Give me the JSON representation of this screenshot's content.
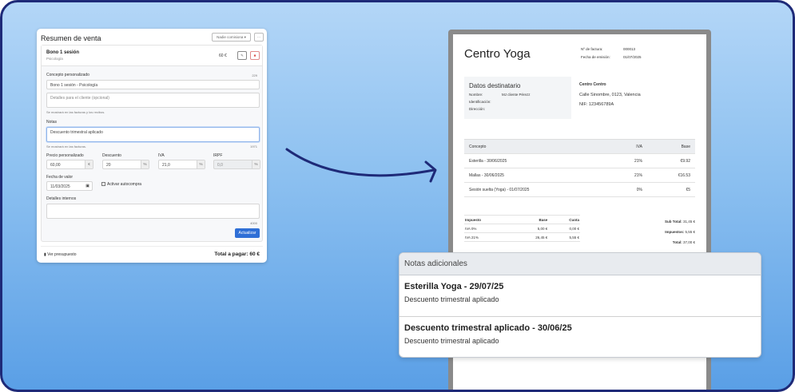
{
  "sale": {
    "title": "Resumen de venta",
    "commission": "Nadie comisiona ▾",
    "more": "···",
    "item": {
      "name": "Bono 1 sesión",
      "category": "Psicología",
      "price": "60 €"
    },
    "concept_label": "Concepto personalizado",
    "concept_count": "229",
    "concept_value": "Bono 1 sesión - Psicología",
    "details_placeholder": "Detalles para el cliente (opcional)",
    "details_hint": "Se mostrará en las facturas y los recibos.",
    "notes_label": "Notas",
    "notes_value": "Descuento trimestral aplicado",
    "notes_hint": "Se mostrará en las facturas.",
    "notes_count": "1971",
    "price_label": "Precio personalizado",
    "price_value": "60,00",
    "price_unit": "€",
    "discount_label": "Descuento",
    "discount_value": "20",
    "discount_unit": "%",
    "iva_label": "IVA",
    "iva_value": "21,0",
    "iva_unit": "%",
    "irpf_label": "IRPF",
    "irpf_value": "0,0",
    "irpf_unit": "%",
    "date_label": "Fecha de valor",
    "date_value": "11/03/2025",
    "autobuy_label": "Activar autocompra",
    "internal_label": "Detalles internos",
    "internal_count": "4000",
    "update": "Actualizar",
    "budget_link": "Ver presupuesto",
    "total": "Total a pagar: 60 €"
  },
  "invoice": {
    "company": "Centro Yoga",
    "num_label": "Nº de factura:",
    "num": "000013",
    "date_label": "Fecha de emisión:",
    "date": "01/07/2025",
    "recipient_title": "Datos destinatario",
    "name_label": "Nombre:",
    "name": "MJ cliente Pérezz",
    "id_label": "Identificación:",
    "address_label": "Dirección:",
    "issuer_name": "Centro Centro",
    "issuer_address": "Calle Sinombre, 0123, Valencia",
    "issuer_nif": "NIF: 123456789A",
    "columns": [
      "Concepto",
      "IVA",
      "Base"
    ],
    "rows": [
      [
        "Esterilla - 30/06/2025",
        "21%",
        "€9.92"
      ],
      [
        "Mallas - 30/06/2025",
        "21%",
        "€16.53"
      ],
      [
        "Sesión suelta (Yoga) - 01/07/2025",
        "0%",
        "€5"
      ]
    ],
    "tax_columns": [
      "Impuesto",
      "Base",
      "Cuota"
    ],
    "tax_rows": [
      [
        "IVA 0%",
        "5,00 €",
        "0,00 €"
      ],
      [
        "IVA 21%",
        "26,45 €",
        "5,55 €"
      ]
    ],
    "subtotal_label": "Sub Total:",
    "subtotal": "31,45 €",
    "taxes_label": "Impuestos:",
    "taxes": "5,55 €",
    "total_label": "Total:",
    "total": "37,00 €"
  },
  "notes": {
    "title": "Notas adicionales",
    "items": [
      {
        "title": "Esterilla Yoga - 29/07/25",
        "text": "Descuento trimestral aplicado"
      },
      {
        "title": "Descuento trimestral aplicado - 30/06/25",
        "text": "Descuento trimestral aplicado"
      }
    ]
  },
  "colors": {
    "frame_border": "#1e2a78",
    "primary_button": "#2f6fd6",
    "delete": "#d9534f",
    "arrow": "#1e2a78"
  }
}
